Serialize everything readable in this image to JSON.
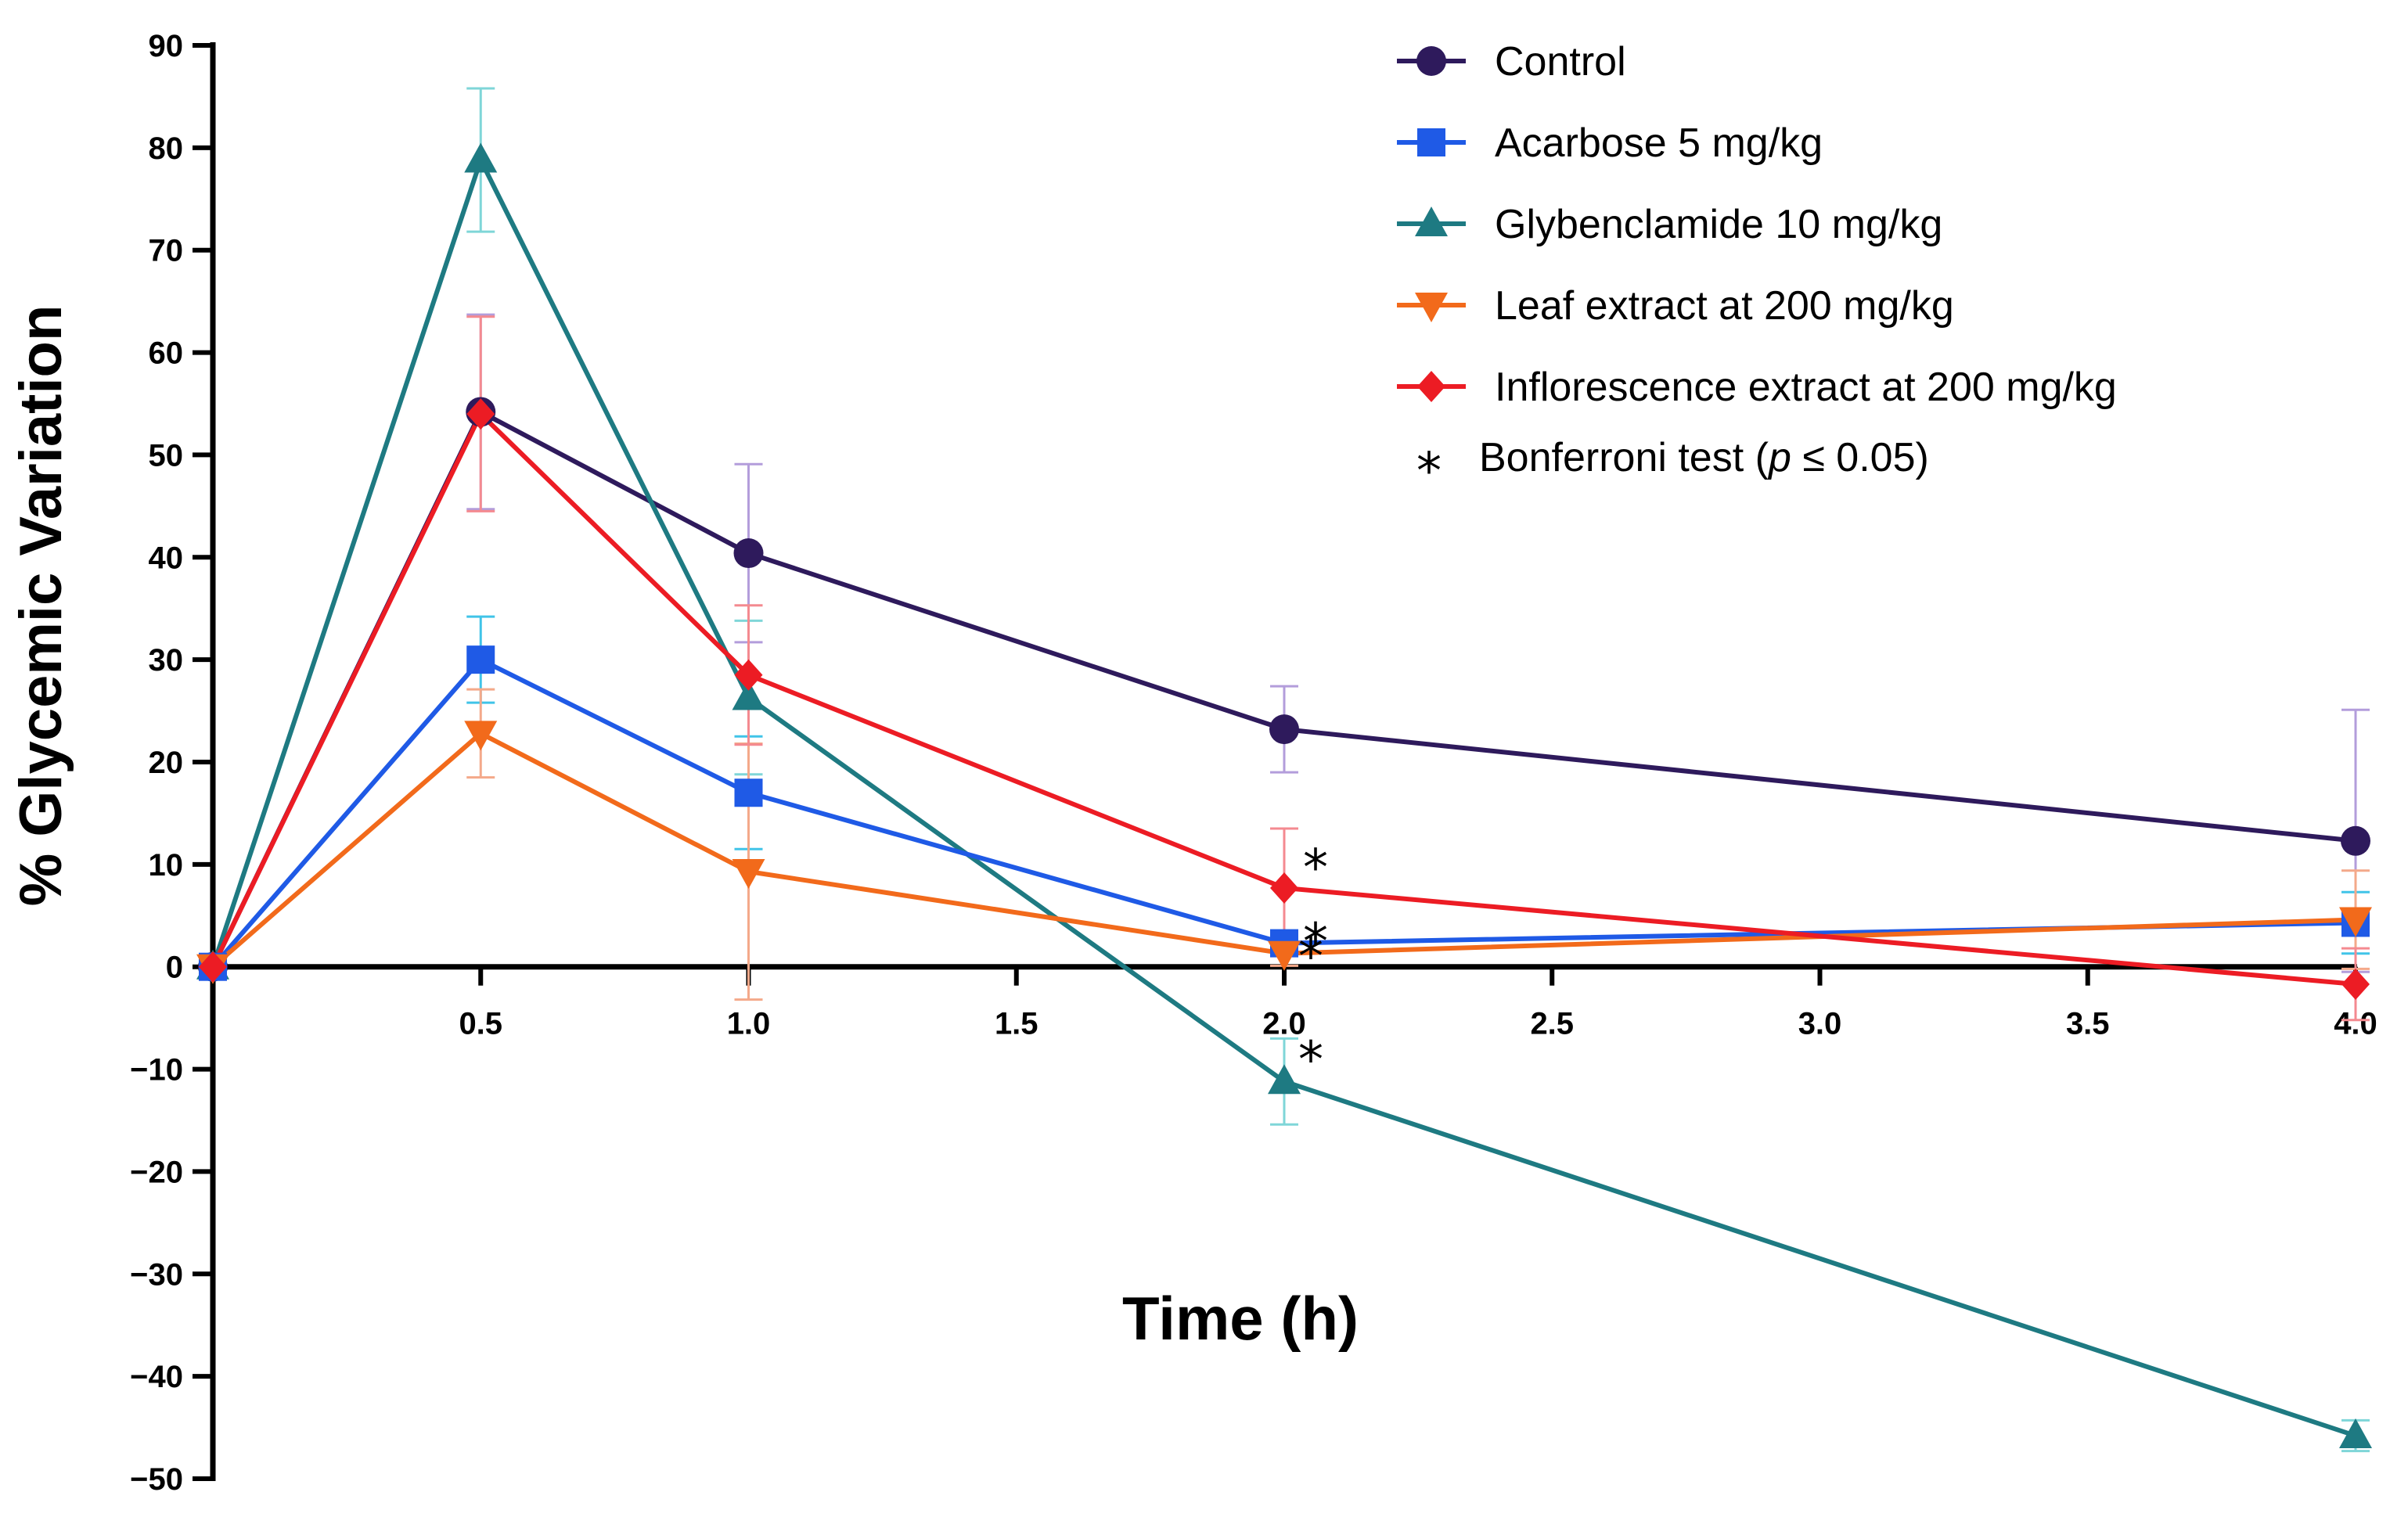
{
  "chart_data": {
    "type": "line",
    "xlabel": "Time (h)",
    "ylabel": "% Glycemic Variation",
    "xlim": [
      0,
      4.0
    ],
    "ylim": [
      -50,
      90
    ],
    "xticks": [
      0.5,
      1.0,
      1.5,
      2.0,
      2.5,
      3.0,
      3.5,
      4.0
    ],
    "xtick_labels": [
      "0.5",
      "1.0",
      "1.5",
      "2.0",
      "2.5",
      "3.0",
      "3.5",
      "4.0"
    ],
    "yticks": [
      90,
      80,
      70,
      60,
      50,
      40,
      30,
      20,
      10,
      0,
      -10,
      -20,
      -30,
      -40,
      -50
    ],
    "ytick_labels": [
      "90",
      "80",
      "70",
      "60",
      "50",
      "40",
      "30",
      "20",
      "10",
      "0",
      "−10",
      "−20",
      "−30",
      "−40",
      "−50"
    ],
    "grid": false,
    "legend_position": "top-right",
    "series": [
      {
        "name": "Control",
        "color": "#2e1a5c",
        "error_color": "#b39ddb",
        "marker": "circle",
        "x": [
          0,
          0.5,
          1.0,
          2.0,
          4.0
        ],
        "y": [
          0,
          54.2,
          40.4,
          23.2,
          12.3
        ],
        "error": [
          0,
          9.5,
          8.7,
          4.2,
          12.8
        ]
      },
      {
        "name": "Acarbose 5 mg/kg",
        "color": "#1f5ae6",
        "error_color": "#40c4e8",
        "marker": "square",
        "x": [
          0,
          0.5,
          1.0,
          2.0,
          4.0
        ],
        "y": [
          0,
          30.0,
          17.0,
          2.3,
          4.3
        ],
        "error": [
          0,
          4.2,
          5.5,
          1.2,
          3.0
        ]
      },
      {
        "name": "Glybenclamide 10 mg/kg",
        "color": "#1e7a82",
        "error_color": "#7fd6d8",
        "marker": "triangle-up",
        "x": [
          0,
          0.5,
          1.0,
          2.0,
          4.0
        ],
        "y": [
          0,
          78.8,
          26.3,
          -11.2,
          -45.8
        ],
        "error": [
          0,
          7.0,
          7.5,
          4.2,
          1.5
        ]
      },
      {
        "name": "Leaf extract at 200 mg/kg",
        "color": "#f26a1b",
        "error_color": "#f4a98a",
        "marker": "triangle-down",
        "x": [
          0,
          0.5,
          1.0,
          2.0,
          4.0
        ],
        "y": [
          0,
          22.8,
          9.3,
          1.3,
          4.6
        ],
        "error": [
          0,
          4.3,
          12.5,
          1.2,
          4.8
        ]
      },
      {
        "name": "Inflorescence extract at 200 mg/kg",
        "color": "#ec1c24",
        "error_color": "#f48a90",
        "marker": "diamond",
        "x": [
          0,
          0.5,
          1.0,
          2.0,
          4.0
        ],
        "y": [
          0,
          54.0,
          28.5,
          7.7,
          -1.7
        ],
        "error": [
          0,
          9.5,
          6.8,
          5.8,
          3.5
        ]
      }
    ],
    "annotations": [
      {
        "text": "*",
        "x": 2.0,
        "y": 7.7
      },
      {
        "text": "*",
        "x": 2.0,
        "y": 2.3
      },
      {
        "text": "*",
        "x": 2.0,
        "y": 1.3
      },
      {
        "text": "*",
        "x": 2.0,
        "y": -11.2
      }
    ],
    "legend_note": {
      "symbol": "*",
      "text_prefix": "Bonferroni test (",
      "text_italic": "p",
      "text_suffix": " ≤ 0.05)"
    }
  }
}
